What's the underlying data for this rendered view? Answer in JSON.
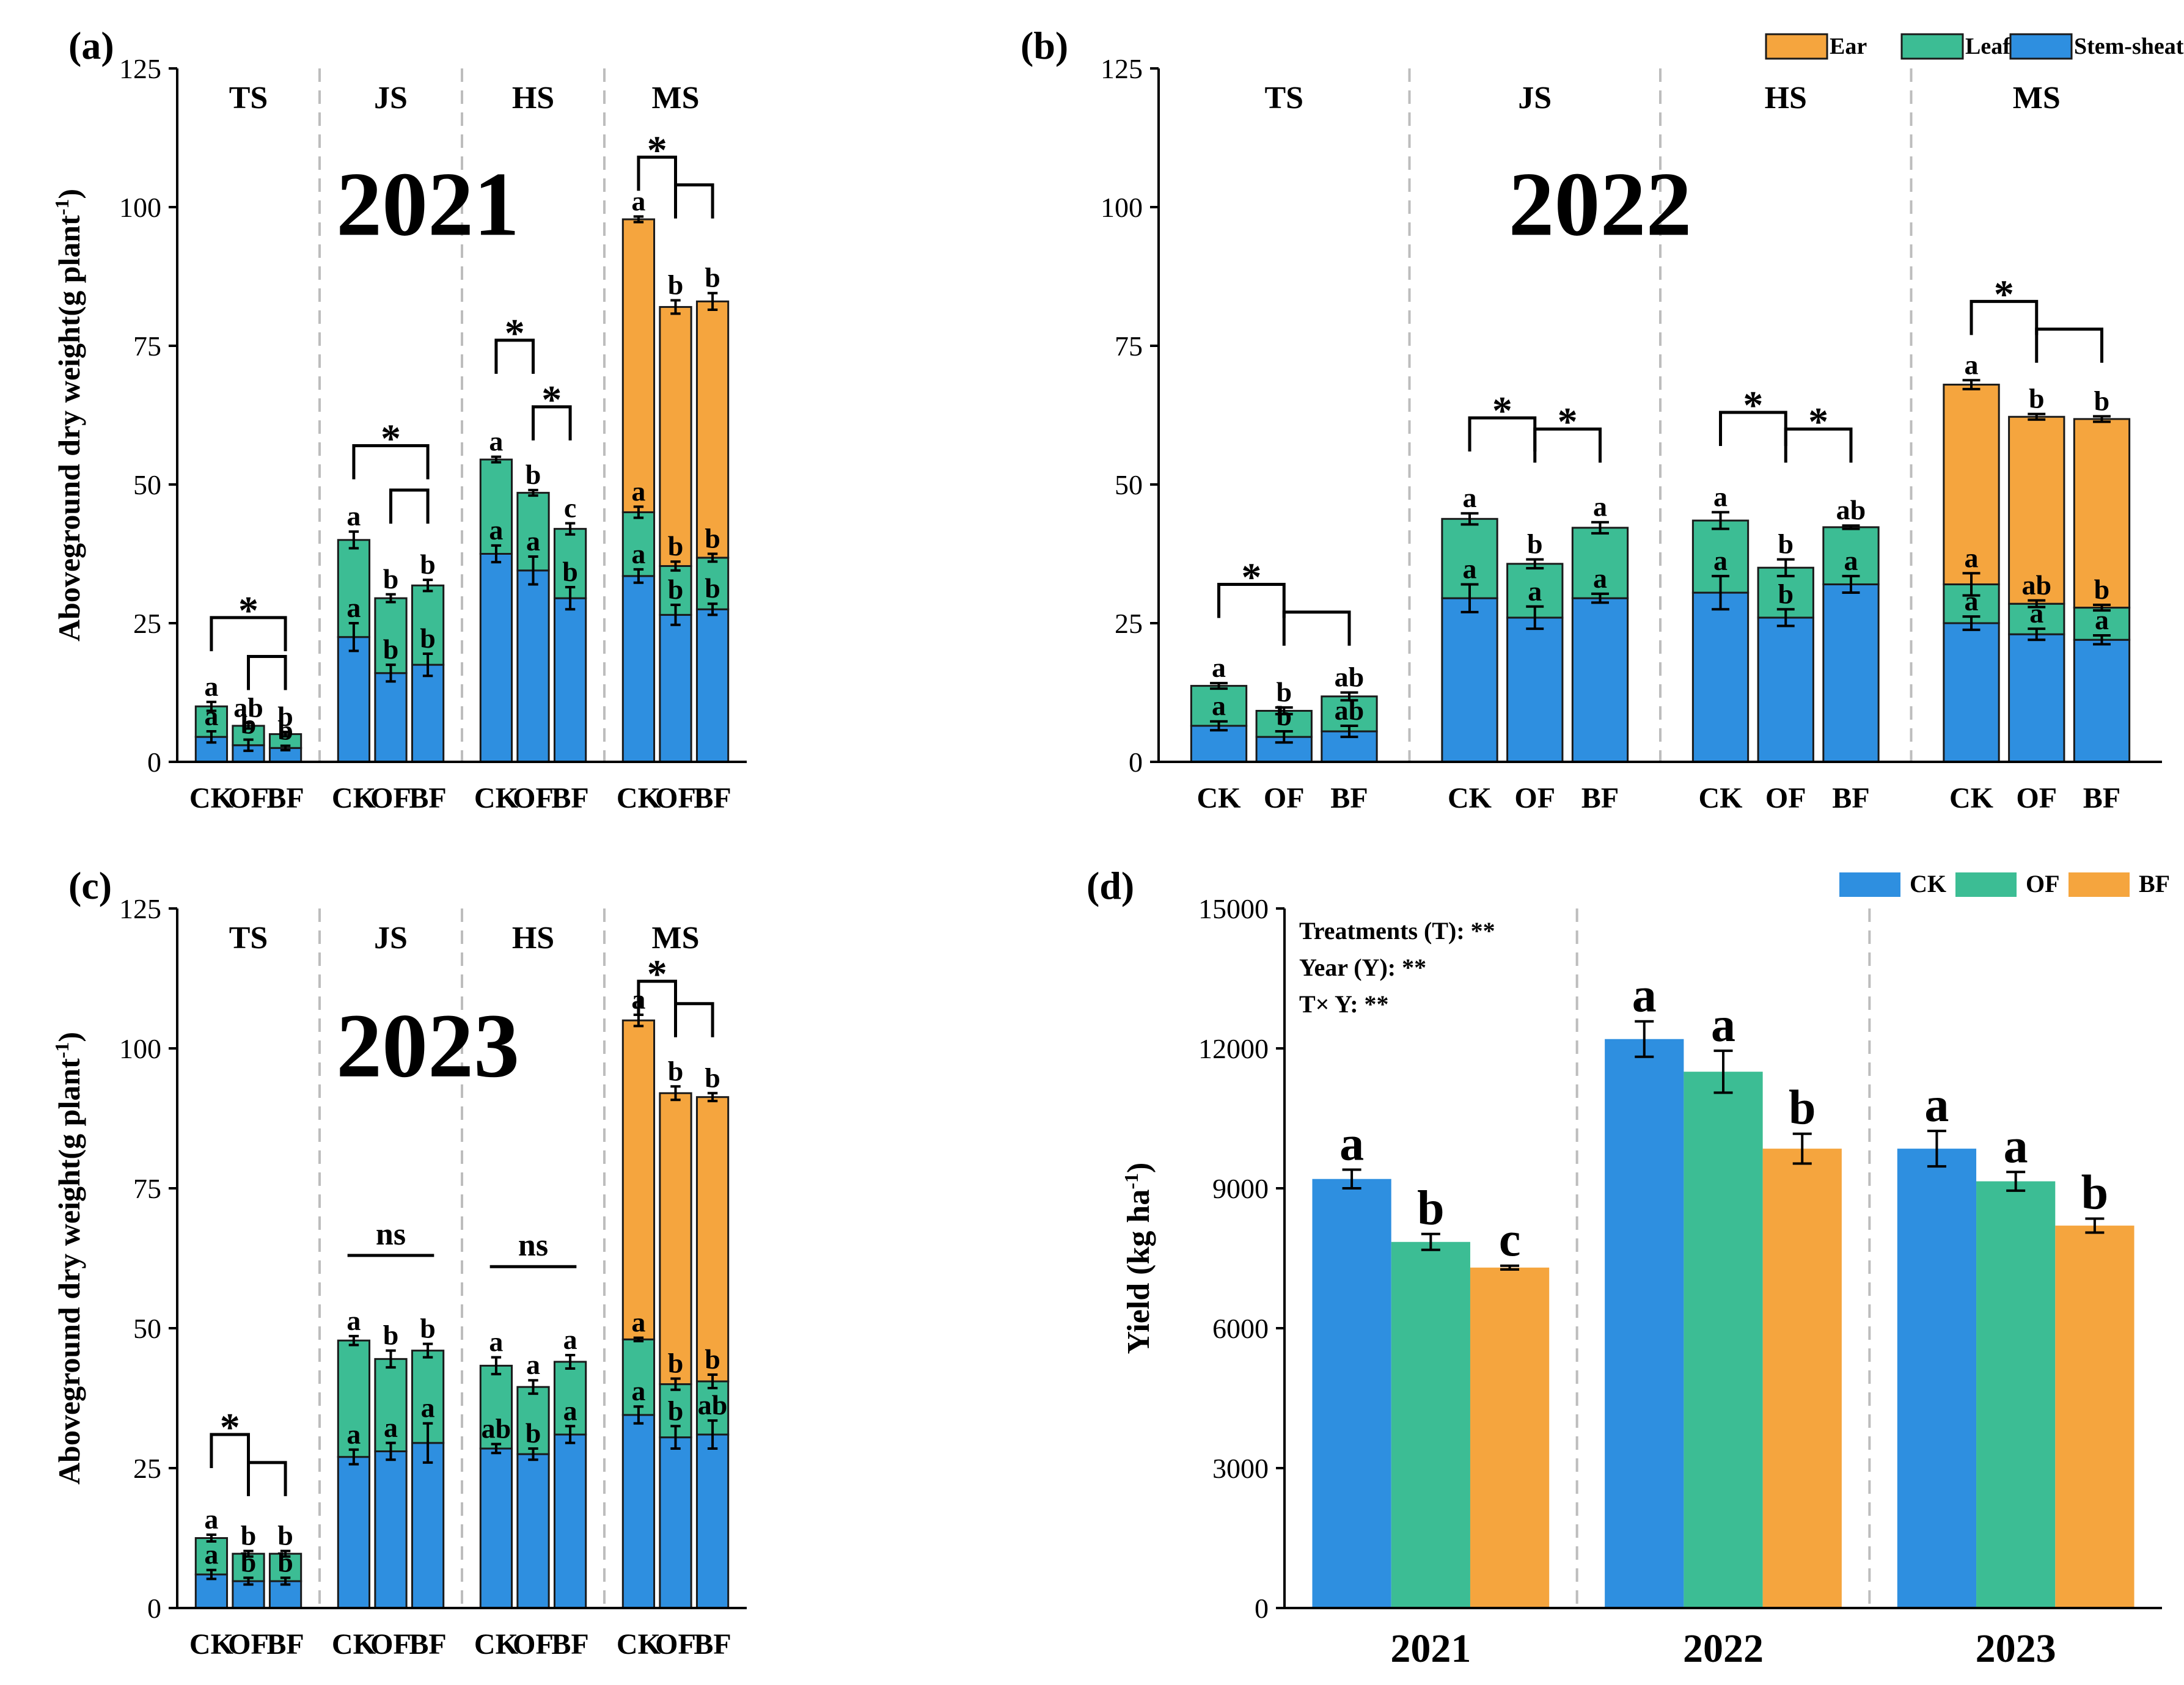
{
  "colors": {
    "stem": "#2e8fe0",
    "leaf": "#3cbd94",
    "ear": "#f5a53e",
    "axis": "#000000",
    "separator": "#bdbdbd"
  },
  "legend_dm": {
    "ear": "Ear",
    "leaf": "Leaf",
    "stem": "Stem-sheath"
  },
  "legend_yield": {
    "ck": "CK",
    "of": "OF",
    "bf": "BF"
  },
  "chart_data": [
    {
      "panel_label": "(a)",
      "type": "bar",
      "stacked": true,
      "year_label": "2021",
      "ylabel": "Aboveground dry weight(g plant",
      "ylabel_sup": "-1",
      "ylabel_end": ")",
      "ylim": [
        0,
        125
      ],
      "yticks": [
        "0",
        "25",
        "50",
        "75",
        "100",
        "125"
      ],
      "show_legend": false,
      "stages": [
        {
          "name": "TS",
          "groups": [
            {
              "label": "CK",
              "stem": 4.5,
              "stem_err": 1.0,
              "leaf": 5.5,
              "leaf_err": 0.8,
              "ear": 0,
              "ear_err": 0,
              "letters": [
                "a",
                "a"
              ]
            },
            {
              "label": "OF",
              "stem": 3.0,
              "stem_err": 1.0,
              "leaf": 3.5,
              "leaf_err": 0.5,
              "ear": 0,
              "ear_err": 0,
              "letters": [
                "b",
                "ab"
              ]
            },
            {
              "label": "BF",
              "stem": 2.5,
              "stem_err": 0.4,
              "leaf": 2.5,
              "leaf_err": 0.4,
              "ear": 0,
              "ear_err": 0,
              "letters": [
                "b",
                "b"
              ]
            }
          ],
          "sig": [
            {
              "from": 0,
              "to": 2,
              "label": "*",
              "y": 26
            },
            {
              "from": 1,
              "to": 2,
              "label": "",
              "y": 19
            }
          ]
        },
        {
          "name": "JS",
          "groups": [
            {
              "label": "CK",
              "stem": 22.5,
              "stem_err": 2.5,
              "leaf": 17.5,
              "leaf_err": 1.5,
              "ear": 0,
              "ear_err": 0,
              "letters": [
                "a",
                "a"
              ]
            },
            {
              "label": "OF",
              "stem": 16.0,
              "stem_err": 1.5,
              "leaf": 13.5,
              "leaf_err": 0.7,
              "ear": 0,
              "ear_err": 0,
              "letters": [
                "b",
                "b"
              ]
            },
            {
              "label": "BF",
              "stem": 17.5,
              "stem_err": 2.0,
              "leaf": 14.3,
              "leaf_err": 1.0,
              "ear": 0,
              "ear_err": 0,
              "letters": [
                "b",
                "b"
              ]
            }
          ],
          "sig": [
            {
              "from": 0,
              "to": 2,
              "label": "*",
              "y": 57
            },
            {
              "from": 1,
              "to": 2,
              "label": "",
              "y": 49
            }
          ]
        },
        {
          "name": "HS",
          "groups": [
            {
              "label": "CK",
              "stem": 37.5,
              "stem_err": 1.5,
              "leaf": 17.0,
              "leaf_err": 0.5,
              "ear": 0,
              "ear_err": 0,
              "letters": [
                "a",
                "a"
              ]
            },
            {
              "label": "OF",
              "stem": 34.5,
              "stem_err": 2.5,
              "leaf": 14.0,
              "leaf_err": 0.5,
              "ear": 0,
              "ear_err": 0,
              "letters": [
                "a",
                "b"
              ]
            },
            {
              "label": "BF",
              "stem": 29.5,
              "stem_err": 2.0,
              "leaf": 12.5,
              "leaf_err": 1.0,
              "ear": 0,
              "ear_err": 0,
              "letters": [
                "b",
                "c"
              ]
            }
          ],
          "sig": [
            {
              "from": 0,
              "to": 1,
              "label": "*",
              "y": 76
            },
            {
              "from": 1,
              "to": 2,
              "label": "*",
              "y": 64
            }
          ]
        },
        {
          "name": "MS",
          "groups": [
            {
              "label": "CK",
              "stem": 33.5,
              "stem_err": 1.2,
              "leaf": 11.5,
              "leaf_err": 1.0,
              "ear": 52.8,
              "ear_err": 0.5,
              "letters": [
                "a",
                "a",
                "a"
              ]
            },
            {
              "label": "OF",
              "stem": 26.5,
              "stem_err": 1.8,
              "leaf": 8.8,
              "leaf_err": 0.8,
              "ear": 46.7,
              "ear_err": 1.2,
              "letters": [
                "b",
                "b",
                "b"
              ]
            },
            {
              "label": "BF",
              "stem": 27.5,
              "stem_err": 1.0,
              "leaf": 9.3,
              "leaf_err": 0.7,
              "ear": 46.2,
              "ear_err": 1.5,
              "letters": [
                "b",
                "b",
                "b"
              ]
            }
          ],
          "sig": [
            {
              "from": 0,
              "to": 1,
              "label": "*",
              "y": 109
            },
            {
              "from": 1,
              "to": 2,
              "label": "",
              "y": 104
            }
          ]
        }
      ]
    },
    {
      "panel_label": "(b)",
      "type": "bar",
      "stacked": true,
      "year_label": "2022",
      "ylabel": "",
      "ylabel_sup": "",
      "ylabel_end": "",
      "ylim": [
        0,
        125
      ],
      "yticks": [
        "0",
        "25",
        "50",
        "75",
        "100",
        "125"
      ],
      "show_legend": true,
      "stages": [
        {
          "name": "TS",
          "groups": [
            {
              "label": "CK",
              "stem": 6.5,
              "stem_err": 0.8,
              "leaf": 7.2,
              "leaf_err": 0.5,
              "ear": 0,
              "ear_err": 0,
              "letters": [
                "a",
                "a"
              ]
            },
            {
              "label": "OF",
              "stem": 4.5,
              "stem_err": 1.0,
              "leaf": 4.7,
              "leaf_err": 0.6,
              "ear": 0,
              "ear_err": 0,
              "letters": [
                "b",
                "b"
              ]
            },
            {
              "label": "BF",
              "stem": 5.5,
              "stem_err": 1.0,
              "leaf": 6.3,
              "leaf_err": 0.7,
              "ear": 0,
              "ear_err": 0,
              "letters": [
                "ab",
                "ab"
              ]
            }
          ],
          "sig": [
            {
              "from": 0,
              "to": 1,
              "label": "*",
              "y": 32
            },
            {
              "from": 1,
              "to": 2,
              "label": "",
              "y": 27
            }
          ]
        },
        {
          "name": "JS",
          "groups": [
            {
              "label": "CK",
              "stem": 29.5,
              "stem_err": 2.5,
              "leaf": 14.3,
              "leaf_err": 1.0,
              "ear": 0,
              "ear_err": 0,
              "letters": [
                "a",
                "a"
              ]
            },
            {
              "label": "OF",
              "stem": 26.0,
              "stem_err": 2.0,
              "leaf": 9.7,
              "leaf_err": 0.8,
              "ear": 0,
              "ear_err": 0,
              "letters": [
                "a",
                "b"
              ]
            },
            {
              "label": "BF",
              "stem": 29.5,
              "stem_err": 0.8,
              "leaf": 12.7,
              "leaf_err": 1.0,
              "ear": 0,
              "ear_err": 0,
              "letters": [
                "a",
                "a"
              ]
            }
          ],
          "sig": [
            {
              "from": 0,
              "to": 1,
              "label": "*",
              "y": 62
            },
            {
              "from": 1,
              "to": 2,
              "label": "*",
              "y": 60
            }
          ]
        },
        {
          "name": "HS",
          "groups": [
            {
              "label": "CK",
              "stem": 30.5,
              "stem_err": 3.0,
              "leaf": 13.0,
              "leaf_err": 1.5,
              "ear": 0,
              "ear_err": 0,
              "letters": [
                "a",
                "a"
              ]
            },
            {
              "label": "OF",
              "stem": 26.0,
              "stem_err": 1.5,
              "leaf": 9.0,
              "leaf_err": 1.5,
              "ear": 0,
              "ear_err": 0,
              "letters": [
                "b",
                "b"
              ]
            },
            {
              "label": "BF",
              "stem": 32.0,
              "stem_err": 1.5,
              "leaf": 10.3,
              "leaf_err": 0.3,
              "ear": 0,
              "ear_err": 0,
              "letters": [
                "a",
                "ab"
              ]
            }
          ],
          "sig": [
            {
              "from": 0,
              "to": 1,
              "label": "*",
              "y": 63
            },
            {
              "from": 1,
              "to": 2,
              "label": "*",
              "y": 60
            }
          ]
        },
        {
          "name": "MS",
          "groups": [
            {
              "label": "CK",
              "stem": 25.0,
              "stem_err": 1.2,
              "leaf": 7.0,
              "leaf_err": 2.0,
              "ear": 36.0,
              "ear_err": 0.8,
              "letters": [
                "a",
                "a",
                "a"
              ]
            },
            {
              "label": "OF",
              "stem": 23.0,
              "stem_err": 1.0,
              "leaf": 5.5,
              "leaf_err": 0.6,
              "ear": 33.7,
              "ear_err": 0.5,
              "letters": [
                "a",
                "ab",
                "b"
              ]
            },
            {
              "label": "BF",
              "stem": 22.0,
              "stem_err": 0.8,
              "leaf": 5.8,
              "leaf_err": 0.5,
              "ear": 34.0,
              "ear_err": 0.5,
              "letters": [
                "a",
                "b",
                "b"
              ]
            }
          ],
          "sig": [
            {
              "from": 0,
              "to": 1,
              "label": "*",
              "y": 83
            },
            {
              "from": 1,
              "to": 2,
              "label": "",
              "y": 78
            }
          ]
        }
      ]
    },
    {
      "panel_label": "(c)",
      "type": "bar",
      "stacked": true,
      "year_label": "2023",
      "ylabel": "Aboveground dry weight(g plant",
      "ylabel_sup": "-1",
      "ylabel_end": ")",
      "ylim": [
        0,
        125
      ],
      "yticks": [
        "0",
        "25",
        "50",
        "75",
        "100",
        "125"
      ],
      "show_legend": false,
      "stages": [
        {
          "name": "TS",
          "groups": [
            {
              "label": "CK",
              "stem": 6.0,
              "stem_err": 0.8,
              "leaf": 6.5,
              "leaf_err": 0.6,
              "ear": 0,
              "ear_err": 0,
              "letters": [
                "a",
                "a"
              ]
            },
            {
              "label": "OF",
              "stem": 4.8,
              "stem_err": 0.6,
              "leaf": 4.9,
              "leaf_err": 0.5,
              "ear": 0,
              "ear_err": 0,
              "letters": [
                "b",
                "b"
              ]
            },
            {
              "label": "BF",
              "stem": 4.8,
              "stem_err": 0.6,
              "leaf": 4.9,
              "leaf_err": 0.5,
              "ear": 0,
              "ear_err": 0,
              "letters": [
                "b",
                "b"
              ]
            }
          ],
          "sig": [
            {
              "from": 0,
              "to": 1,
              "label": "*",
              "y": 31
            },
            {
              "from": 1,
              "to": 2,
              "label": "",
              "y": 26
            }
          ]
        },
        {
          "name": "JS",
          "groups": [
            {
              "label": "CK",
              "stem": 27.0,
              "stem_err": 1.3,
              "leaf": 20.8,
              "leaf_err": 0.8,
              "ear": 0,
              "ear_err": 0,
              "letters": [
                "a",
                "a"
              ]
            },
            {
              "label": "OF",
              "stem": 28.0,
              "stem_err": 1.5,
              "leaf": 16.5,
              "leaf_err": 1.5,
              "ear": 0,
              "ear_err": 0,
              "letters": [
                "a",
                "b"
              ]
            },
            {
              "label": "BF",
              "stem": 29.5,
              "stem_err": 3.5,
              "leaf": 16.5,
              "leaf_err": 1.2,
              "ear": 0,
              "ear_err": 0,
              "letters": [
                "a",
                "b"
              ]
            }
          ],
          "sig": [
            {
              "from": 0,
              "to": 2,
              "label": "ns",
              "y": 63,
              "flat": true
            }
          ]
        },
        {
          "name": "HS",
          "groups": [
            {
              "label": "CK",
              "stem": 28.5,
              "stem_err": 0.8,
              "leaf": 14.8,
              "leaf_err": 1.5,
              "ear": 0,
              "ear_err": 0,
              "letters": [
                "ab",
                "a"
              ]
            },
            {
              "label": "OF",
              "stem": 27.5,
              "stem_err": 1.0,
              "leaf": 12.0,
              "leaf_err": 1.2,
              "ear": 0,
              "ear_err": 0,
              "letters": [
                "b",
                "a"
              ]
            },
            {
              "label": "BF",
              "stem": 31.0,
              "stem_err": 1.5,
              "leaf": 13.0,
              "leaf_err": 1.2,
              "ear": 0,
              "ear_err": 0,
              "letters": [
                "a",
                "a"
              ]
            }
          ],
          "sig": [
            {
              "from": 0,
              "to": 2,
              "label": "ns",
              "y": 61,
              "flat": true
            }
          ]
        },
        {
          "name": "MS",
          "groups": [
            {
              "label": "CK",
              "stem": 34.5,
              "stem_err": 1.5,
              "leaf": 13.5,
              "leaf_err": 0.3,
              "ear": 57.0,
              "ear_err": 1.0,
              "letters": [
                "a",
                "a",
                "a"
              ]
            },
            {
              "label": "OF",
              "stem": 30.5,
              "stem_err": 2.0,
              "leaf": 9.5,
              "leaf_err": 1.0,
              "ear": 52.0,
              "ear_err": 1.2,
              "letters": [
                "b",
                "b",
                "b"
              ]
            },
            {
              "label": "BF",
              "stem": 31.0,
              "stem_err": 2.5,
              "leaf": 9.5,
              "leaf_err": 1.2,
              "ear": 50.8,
              "ear_err": 0.7,
              "letters": [
                "ab",
                "b",
                "b"
              ]
            }
          ],
          "sig": [
            {
              "from": 0,
              "to": 1,
              "label": "*",
              "y": 112
            },
            {
              "from": 1,
              "to": 2,
              "label": "",
              "y": 108
            }
          ]
        }
      ]
    },
    {
      "panel_label": "(d)",
      "type": "bar",
      "stacked": false,
      "title": "",
      "xlabel": "",
      "ylabel": "Yield (kg ha",
      "ylabel_sup": "-1",
      "ylabel_end": ")",
      "ylim": [
        0,
        15000
      ],
      "yticks": [
        "0",
        "3000",
        "6000",
        "9000",
        "12000",
        "15000"
      ],
      "categories": [
        "2021",
        "2022",
        "2023"
      ],
      "series": [
        {
          "name": "CK",
          "values": [
            9200,
            12200,
            9850
          ],
          "errors": [
            200,
            380,
            380
          ],
          "letters": [
            "a",
            "a",
            "a"
          ]
        },
        {
          "name": "OF",
          "values": [
            7850,
            11500,
            9150
          ],
          "errors": [
            170,
            450,
            200
          ],
          "letters": [
            "b",
            "a",
            "a"
          ]
        },
        {
          "name": "BF",
          "values": [
            7300,
            9850,
            8200
          ],
          "errors": [
            40,
            320,
            150
          ],
          "letters": [
            "c",
            "b",
            "b"
          ]
        }
      ],
      "annotations": [
        "Treatments (T): **",
        "Year (Y): **",
        "T× Y: **"
      ]
    }
  ]
}
